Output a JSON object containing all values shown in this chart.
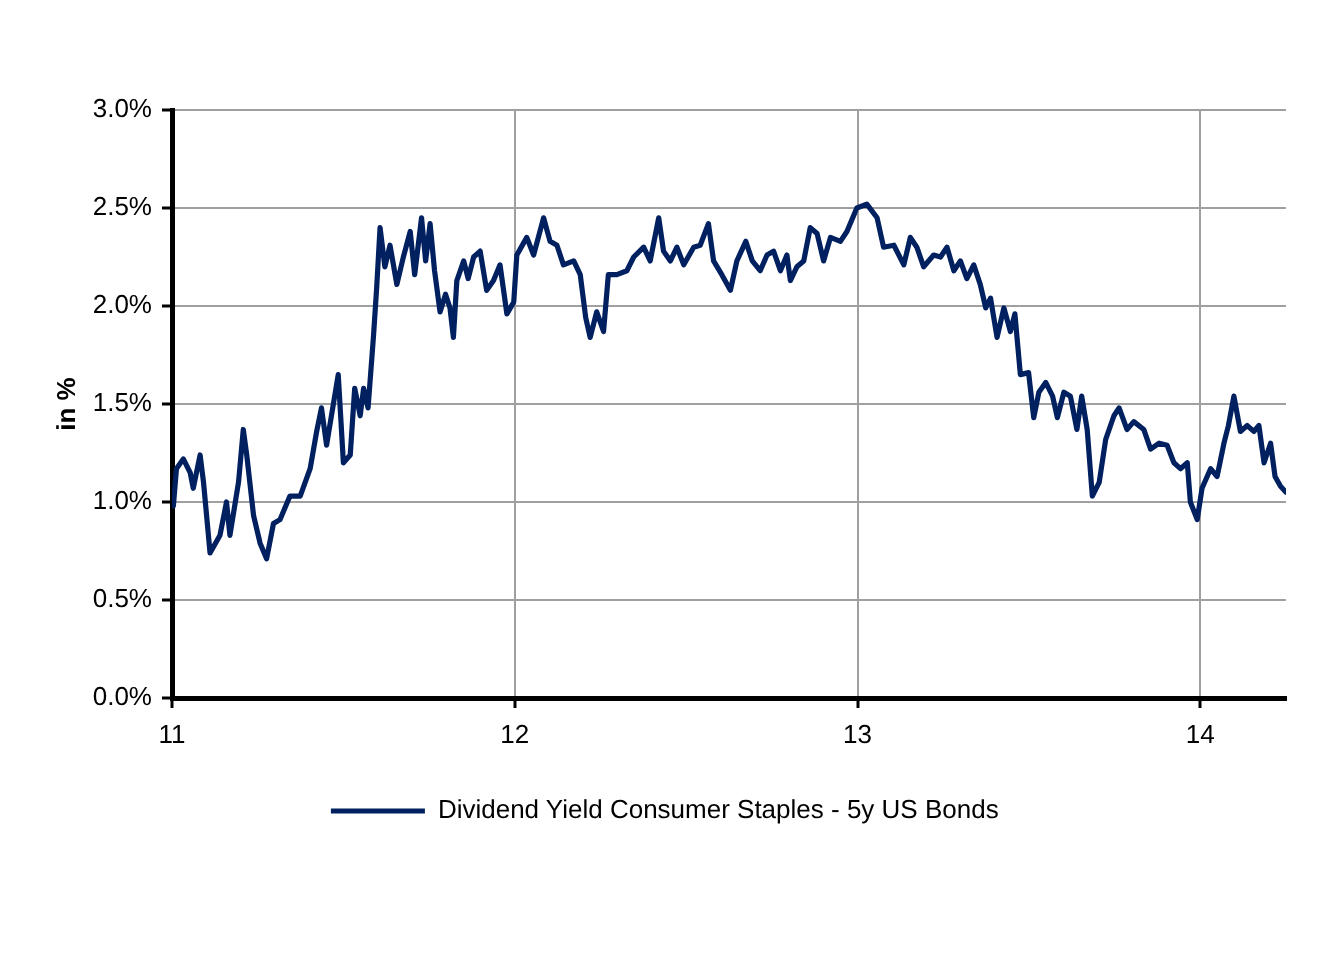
{
  "chart_data": {
    "type": "line",
    "ylabel": "in %",
    "x": [
      11.004,
      11.013,
      11.033,
      11.053,
      11.062,
      11.082,
      11.092,
      11.111,
      11.14,
      11.159,
      11.169,
      11.194,
      11.208,
      11.218,
      11.238,
      11.257,
      11.276,
      11.296,
      11.315,
      11.344,
      11.374,
      11.403,
      11.422,
      11.436,
      11.451,
      11.467,
      11.485,
      11.5,
      11.52,
      11.533,
      11.549,
      11.559,
      11.572,
      11.588,
      11.597,
      11.607,
      11.621,
      11.636,
      11.656,
      11.675,
      11.695,
      11.708,
      11.728,
      11.74,
      11.753,
      11.766,
      11.782,
      11.798,
      11.811,
      11.821,
      11.831,
      11.851,
      11.864,
      11.88,
      11.899,
      11.918,
      11.938,
      11.957,
      11.977,
      11.997,
      12.006,
      12.035,
      12.055,
      12.084,
      12.103,
      12.123,
      12.142,
      12.172,
      12.191,
      12.207,
      12.22,
      12.239,
      12.259,
      12.273,
      12.298,
      12.327,
      12.347,
      12.376,
      12.395,
      12.42,
      12.434,
      12.454,
      12.473,
      12.493,
      12.522,
      12.541,
      12.565,
      12.58,
      12.604,
      12.629,
      12.648,
      12.674,
      12.693,
      12.716,
      12.736,
      12.755,
      12.775,
      12.794,
      12.804,
      12.823,
      12.843,
      12.862,
      12.882,
      12.901,
      12.921,
      12.95,
      12.969,
      12.998,
      13.027,
      13.057,
      13.076,
      13.106,
      13.135,
      13.154,
      13.173,
      13.193,
      13.222,
      13.242,
      13.261,
      13.281,
      13.3,
      13.319,
      13.339,
      13.358,
      13.374,
      13.388,
      13.407,
      13.427,
      13.446,
      13.459,
      13.475,
      13.499,
      13.514,
      13.529,
      13.549,
      13.569,
      13.583,
      13.602,
      13.621,
      13.64,
      13.654,
      13.67,
      13.685,
      13.705,
      13.724,
      13.748,
      13.763,
      13.786,
      13.806,
      13.835,
      13.855,
      13.88,
      13.903,
      13.923,
      13.942,
      13.962,
      13.971,
      13.991,
      14.005,
      14.03,
      14.049,
      14.069,
      14.082,
      14.098,
      14.117,
      14.137,
      14.156,
      14.171,
      14.186,
      14.205,
      14.218,
      14.234,
      14.25
    ],
    "series": [
      {
        "name": "Dividend Yield Consumer Staples - 5y US Bonds",
        "color": "#002060",
        "values": [
          0.98,
          1.17,
          1.22,
          1.15,
          1.07,
          1.24,
          1.1,
          0.74,
          0.83,
          1.0,
          0.83,
          1.1,
          1.37,
          1.24,
          0.93,
          0.79,
          0.71,
          0.89,
          0.91,
          1.03,
          1.03,
          1.17,
          1.36,
          1.48,
          1.29,
          1.46,
          1.65,
          1.2,
          1.24,
          1.58,
          1.44,
          1.58,
          1.48,
          1.85,
          2.09,
          2.4,
          2.2,
          2.31,
          2.11,
          2.25,
          2.38,
          2.16,
          2.45,
          2.23,
          2.42,
          2.18,
          1.97,
          2.06,
          1.99,
          1.84,
          2.13,
          2.23,
          2.14,
          2.25,
          2.28,
          2.08,
          2.13,
          2.21,
          1.96,
          2.02,
          2.26,
          2.35,
          2.26,
          2.45,
          2.33,
          2.31,
          2.21,
          2.23,
          2.16,
          1.94,
          1.84,
          1.97,
          1.87,
          2.16,
          2.16,
          2.18,
          2.25,
          2.3,
          2.23,
          2.45,
          2.28,
          2.23,
          2.3,
          2.21,
          2.3,
          2.31,
          2.42,
          2.23,
          2.16,
          2.08,
          2.23,
          2.33,
          2.23,
          2.18,
          2.26,
          2.28,
          2.18,
          2.26,
          2.13,
          2.2,
          2.23,
          2.4,
          2.37,
          2.23,
          2.35,
          2.33,
          2.38,
          2.5,
          2.52,
          2.45,
          2.3,
          2.31,
          2.21,
          2.35,
          2.3,
          2.2,
          2.26,
          2.25,
          2.3,
          2.18,
          2.23,
          2.14,
          2.21,
          2.11,
          1.99,
          2.04,
          1.84,
          1.99,
          1.87,
          1.96,
          1.65,
          1.66,
          1.43,
          1.56,
          1.61,
          1.54,
          1.43,
          1.56,
          1.54,
          1.37,
          1.54,
          1.37,
          1.03,
          1.1,
          1.32,
          1.44,
          1.48,
          1.37,
          1.41,
          1.37,
          1.27,
          1.3,
          1.29,
          1.2,
          1.17,
          1.2,
          1.0,
          0.91,
          1.07,
          1.17,
          1.13,
          1.3,
          1.39,
          1.54,
          1.36,
          1.39,
          1.36,
          1.39,
          1.2,
          1.3,
          1.13,
          1.08,
          1.05
        ]
      }
    ],
    "xlim": [
      11,
      14.25
    ],
    "xticks": [
      11,
      12,
      13,
      14
    ],
    "ylim": [
      0,
      3
    ],
    "yticks": [
      {
        "value": 0,
        "label": "0.0%"
      },
      {
        "value": 0.5,
        "label": "0.5%"
      },
      {
        "value": 1,
        "label": "1.0%"
      },
      {
        "value": 1.5,
        "label": "1.5%"
      },
      {
        "value": 2,
        "label": "2.0%"
      },
      {
        "value": 2.5,
        "label": "2.5%"
      },
      {
        "value": 3,
        "label": "3.0%"
      }
    ],
    "grid": true,
    "legend": "bottom",
    "marker": "none",
    "line_style": "solid"
  }
}
